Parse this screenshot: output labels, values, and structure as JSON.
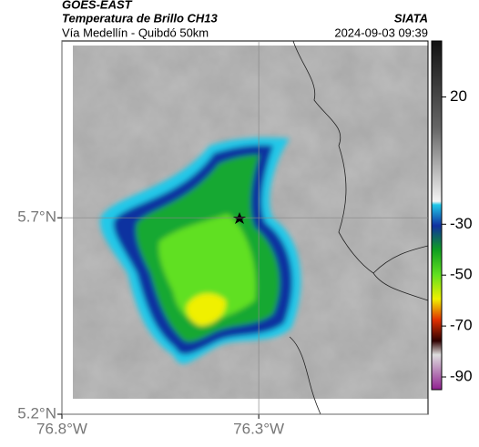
{
  "header": {
    "satellite": "GOES-EAST",
    "product": "Temperatura de Brillo CH13",
    "source": "SIATA",
    "region": "Vía Medellín - Quibdó 50km",
    "timestamp": "2024-09-03 09:39"
  },
  "map": {
    "xlim": [
      -76.8,
      -75.87
    ],
    "ylim": [
      5.2,
      6.15
    ],
    "xticks": [
      {
        "value": -76.8,
        "label": "76.8°W"
      },
      {
        "value": -76.3,
        "label": "76.3°W"
      }
    ],
    "yticks": [
      {
        "value": 5.2,
        "label": "5.2°N"
      },
      {
        "value": 5.7,
        "label": "5.7°N"
      }
    ],
    "grid": true
  },
  "colorbar": {
    "lim": [
      -95,
      42
    ],
    "ticks": [
      20,
      -30,
      -50,
      -70,
      -90
    ]
  }
}
